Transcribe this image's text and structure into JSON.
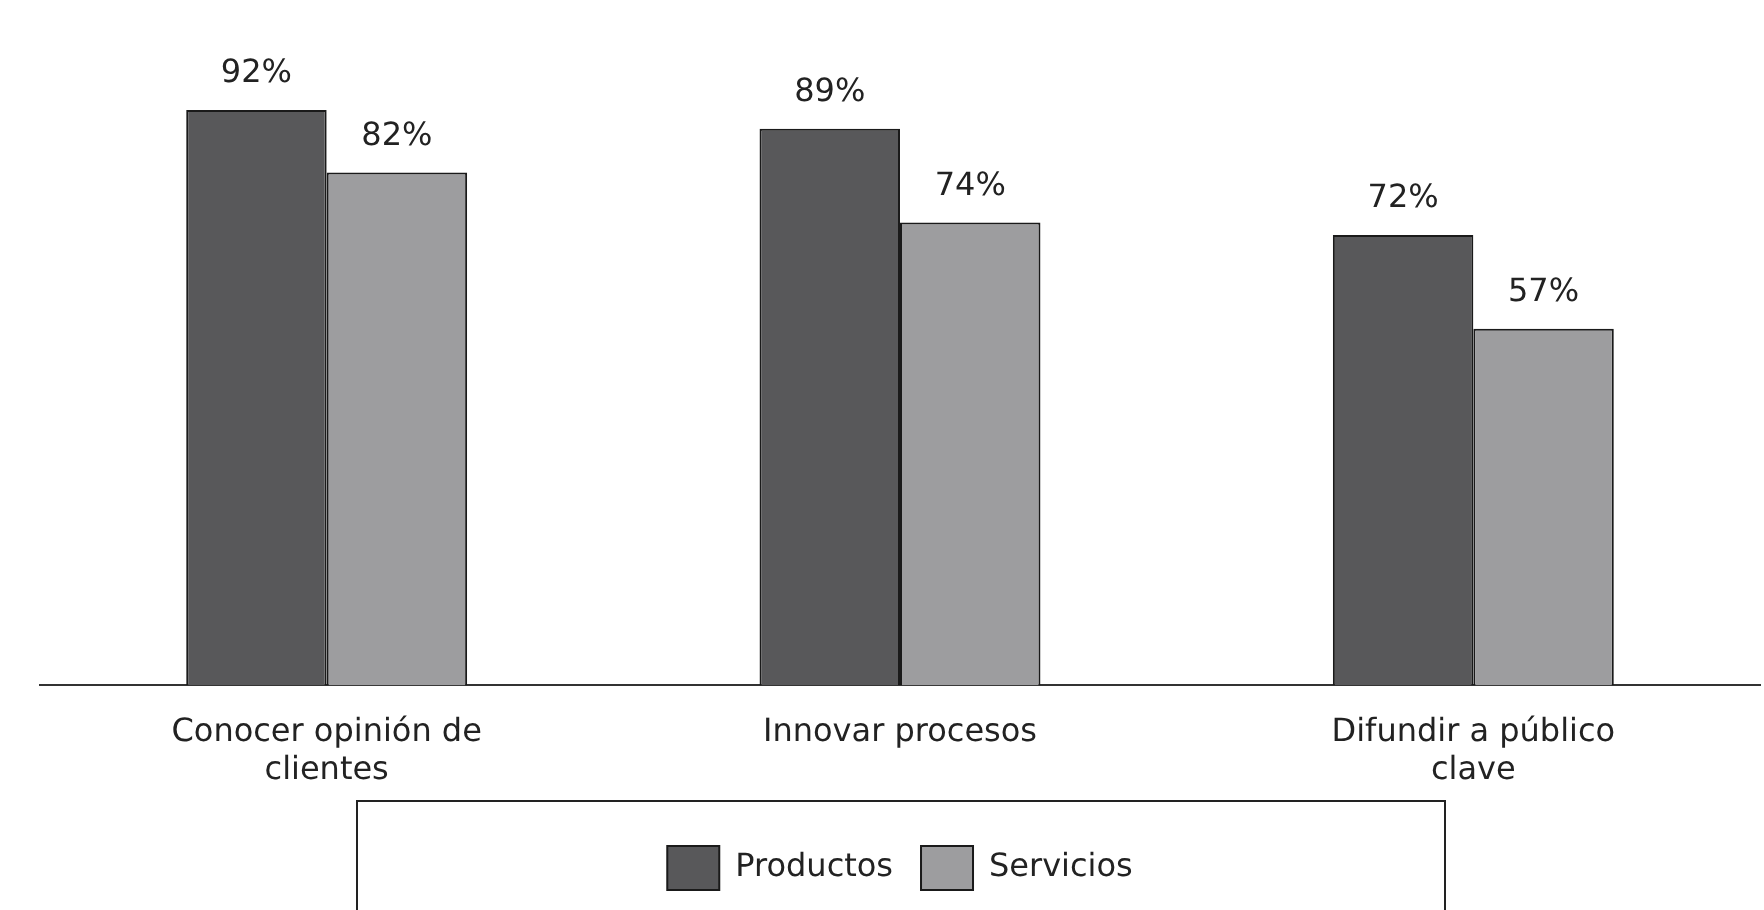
{
  "chart_data": {
    "type": "bar",
    "categories": [
      "Conocer opinión de clientes",
      "Innovar procesos",
      "Difundir a público clave"
    ],
    "series": [
      {
        "name": "Productos",
        "color": "#58585a",
        "values": [
          92,
          89,
          72
        ],
        "value_labels": [
          "92%",
          "89%",
          "72%"
        ]
      },
      {
        "name": "Servicios",
        "color": "#9d9d9f",
        "values": [
          82,
          74,
          57
        ],
        "value_labels": [
          "82%",
          "74%",
          "57%"
        ]
      }
    ],
    "legend": "bottom",
    "grid": false
  }
}
